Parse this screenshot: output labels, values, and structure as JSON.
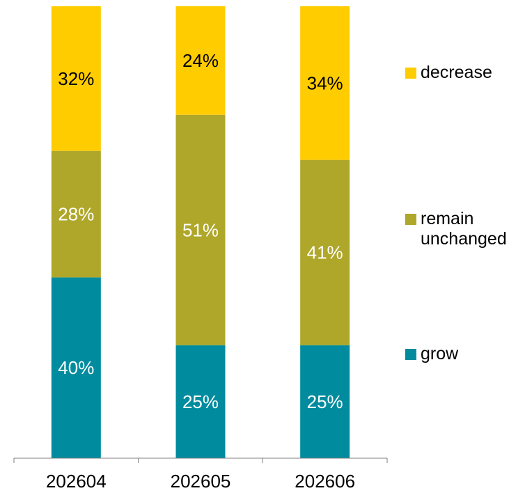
{
  "chart_data": {
    "type": "bar",
    "stacked": true,
    "percent_stacked": true,
    "categories": [
      "202604",
      "202605",
      "202606"
    ],
    "series": [
      {
        "name": "grow",
        "values": [
          40,
          25,
          25
        ],
        "labels": [
          "40%",
          "25%",
          "25%"
        ],
        "color": "#008C9E",
        "label_color": "#ffffff"
      },
      {
        "name": "remain unchanged",
        "values": [
          28,
          51,
          41
        ],
        "labels": [
          "28%",
          "51%",
          "41%"
        ],
        "color": "#AFA72A",
        "label_color": "#ffffff"
      },
      {
        "name": "decrease",
        "values": [
          32,
          24,
          34
        ],
        "labels": [
          "32%",
          "24%",
          "34%"
        ],
        "color": "#FFCC00",
        "label_color": "#000000"
      }
    ],
    "ylim": [
      0,
      100
    ],
    "grid": false,
    "legend": "right",
    "legend_order": [
      "decrease",
      "remain unchanged",
      "grow"
    ],
    "legend_lines": {
      "decrease": [
        "decrease"
      ],
      "remain unchanged": [
        "remain",
        "unchanged"
      ],
      "grow": [
        "grow"
      ]
    }
  }
}
